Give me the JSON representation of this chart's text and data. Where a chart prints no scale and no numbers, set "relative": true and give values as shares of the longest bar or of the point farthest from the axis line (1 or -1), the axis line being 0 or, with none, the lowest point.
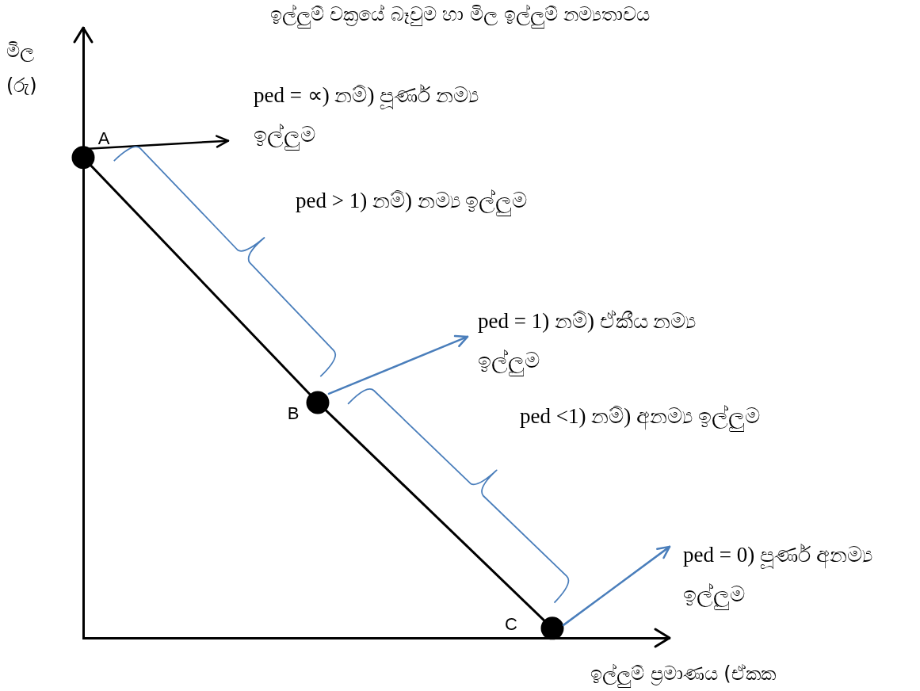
{
  "chart_data": {
    "type": "line",
    "title": "ඉල්ලුම් වක්‍රයේ බෑවුම හා මිල ඉල්ලුම් නම්‍යතාවය",
    "xlabel": "ඉල්ලුම් ප්‍රමාණය (ඒකක",
    "ylabel": "මිල (රු)",
    "categories": [
      null,
      null,
      null,
      null,
      null,
      null
    ],
    "values": [
      1,
      null,
      0.49,
      null,
      0.02,
      null
    ],
    "color": "#000000",
    "relative": true,
    "marker": "circle",
    "tick_labels": false,
    "annotations": [
      "A",
      "B",
      "C",
      "ped = ∝) නම්) පූර්ණ නම්‍ය ඉල්ලුම",
      "ped > 1) නම්) නම්‍ය ඉල්ලුම",
      "ped = 1) නම්) ඒකීය නම්‍ය ඉල්ලුම",
      "ped <1) නම්) අනම්‍ය ඉල්ලුම",
      "ped = 0) පූර්ණ අනම්‍ය ඉල්ලුම"
    ]
  }
}
